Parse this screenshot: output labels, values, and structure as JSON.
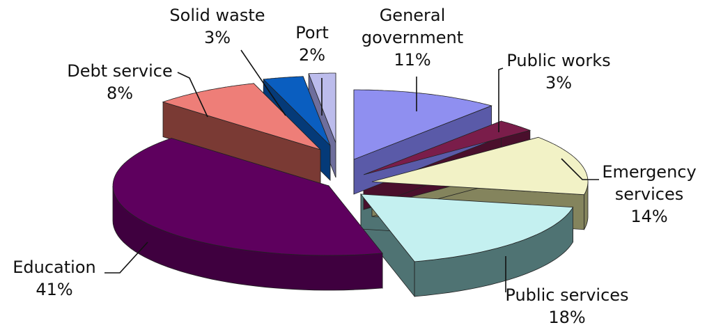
{
  "chart_data": {
    "type": "pie",
    "title": "",
    "legend": "none",
    "slices": [
      {
        "label_lines": [
          "General",
          "government"
        ],
        "value": 11,
        "value_text": "11%",
        "color": "#8f8ff0",
        "side_color": "#5a5aa8"
      },
      {
        "label_lines": [
          "Public works"
        ],
        "value": 3,
        "value_text": "3%",
        "color": "#7a1d4a",
        "side_color": "#4a0f2c"
      },
      {
        "label_lines": [
          "Emergency",
          "services"
        ],
        "value": 14,
        "value_text": "14%",
        "color": "#f2f2c6",
        "side_color": "#84845d"
      },
      {
        "label_lines": [
          "Public services"
        ],
        "value": 18,
        "value_text": "18%",
        "color": "#c4f0f0",
        "side_color": "#4f7373"
      },
      {
        "label_lines": [
          "Education"
        ],
        "value": 41,
        "value_text": "41%",
        "color": "#5e005e",
        "side_color": "#3f003f"
      },
      {
        "label_lines": [
          "Debt service"
        ],
        "value": 8,
        "value_text": "8%",
        "color": "#ee7e78",
        "side_color": "#7a3a34"
      },
      {
        "label_lines": [
          "Solid waste"
        ],
        "value": 3,
        "value_text": "3%",
        "color": "#0a5ec0",
        "side_color": "#053a78"
      },
      {
        "label_lines": [
          "Port"
        ],
        "value": 2,
        "value_text": "2%",
        "color": "#bcbcec",
        "side_color": "#6e6e9c"
      }
    ]
  }
}
